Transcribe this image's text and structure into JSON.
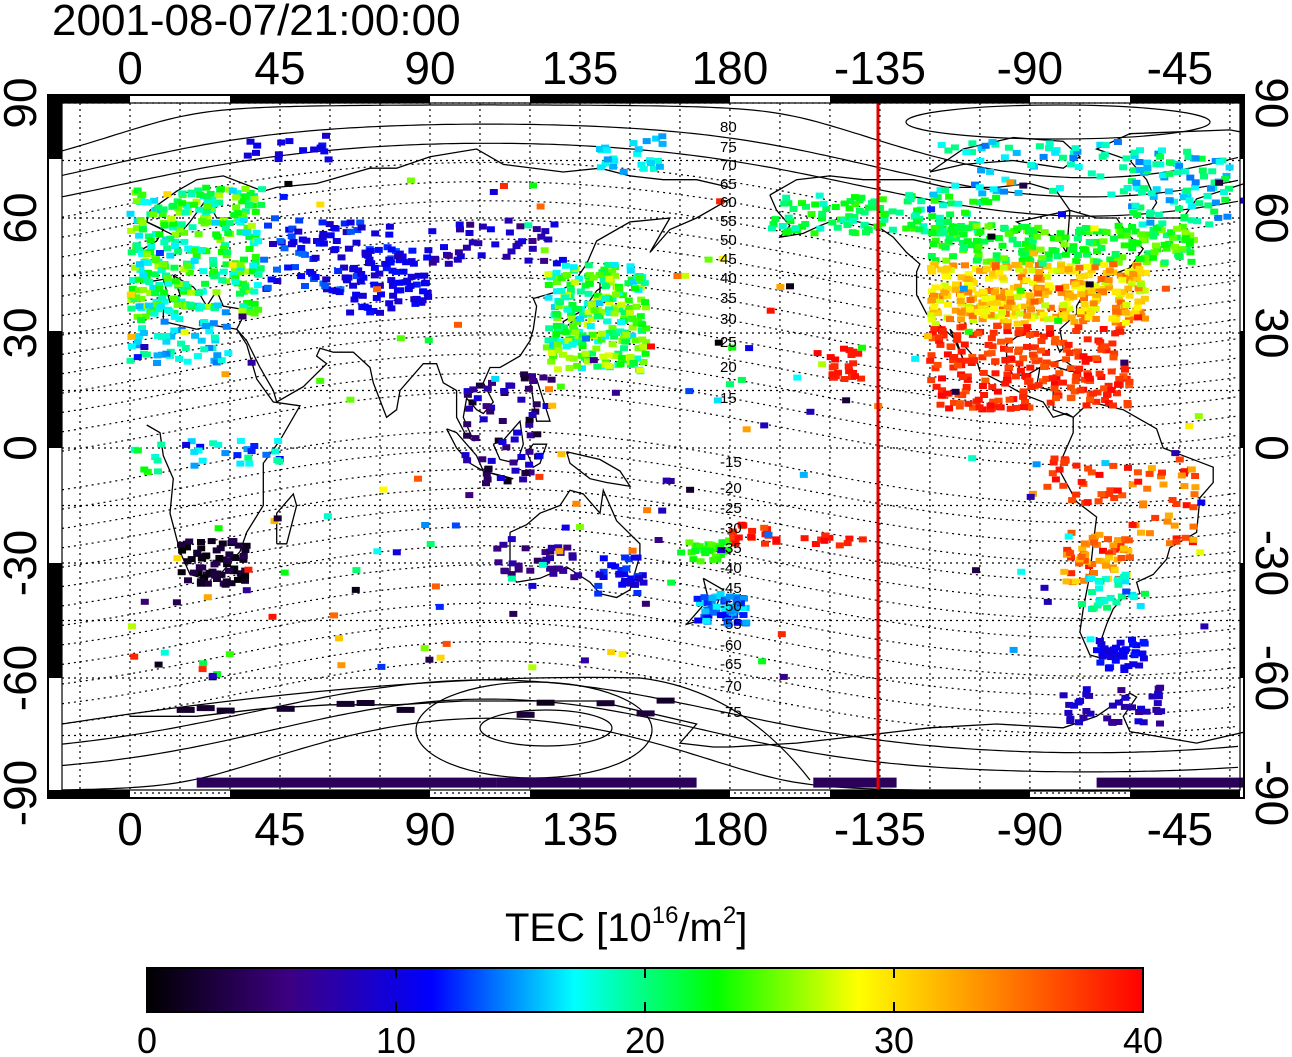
{
  "title": "2001-08-07/21:00:00",
  "map": {
    "lon_ticks": [
      "0",
      "45",
      "90",
      "135",
      "180",
      "-135",
      "-90",
      "-45"
    ],
    "lat_ticks": [
      "90",
      "60",
      "30",
      "0",
      "-30",
      "-60",
      "-90"
    ],
    "contour_labels_north": [
      "80",
      "75",
      "70",
      "65",
      "60",
      "55",
      "50",
      "45",
      "40",
      "35",
      "30",
      "25",
      "20",
      "15"
    ],
    "contour_labels_south": [
      "-15",
      "-20",
      "-25",
      "-30",
      "-35",
      "-40",
      "-45",
      "-50",
      "-55",
      "-60",
      "-65",
      "-70",
      "-75"
    ],
    "marker_line_color": "#e00000"
  },
  "colorbar": {
    "label_main": "TEC  [10",
    "label_exp1": "16",
    "label_mid": "/m",
    "label_exp2": "2",
    "label_end": "]",
    "ticks": [
      "0",
      "10",
      "20",
      "30",
      "40"
    ],
    "min": 0,
    "max": 40,
    "colors": [
      "#000000",
      "#3c0082",
      "#0000ff",
      "#00ffff",
      "#00ff00",
      "#ffff00",
      "#ff8000",
      "#ff0000"
    ]
  }
}
